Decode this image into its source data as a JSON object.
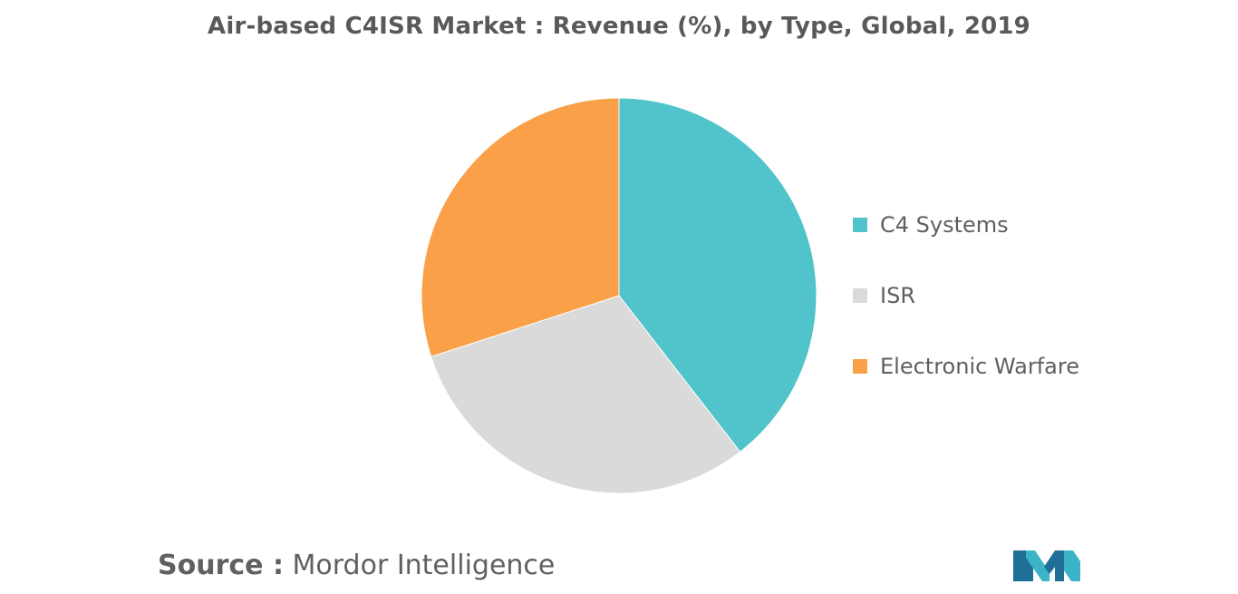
{
  "title": "Air-based C4ISR Market : Revenue (%), by Type, Global, 2019",
  "source": {
    "label": "Source :",
    "value": "Mordor Intelligence"
  },
  "colors": {
    "c4": "#50C4CA",
    "isr": "#DADADA",
    "ew": "#F9A049",
    "title": "#595959",
    "text": "#5f5f5f"
  },
  "chart_data": {
    "type": "pie",
    "title": "Air-based C4ISR Market : Revenue (%), by Type, Global, 2019",
    "slices": [
      {
        "label": "C4 Systems",
        "value": 39.5,
        "color": "#50C4CA"
      },
      {
        "label": "ISR",
        "value": 30.5,
        "color": "#DADADA"
      },
      {
        "label": "Electronic Warfare",
        "value": 30.0,
        "color": "#F9A049"
      }
    ],
    "legend_position": "right",
    "start_angle": "12 o'clock",
    "direction": "clockwise"
  }
}
